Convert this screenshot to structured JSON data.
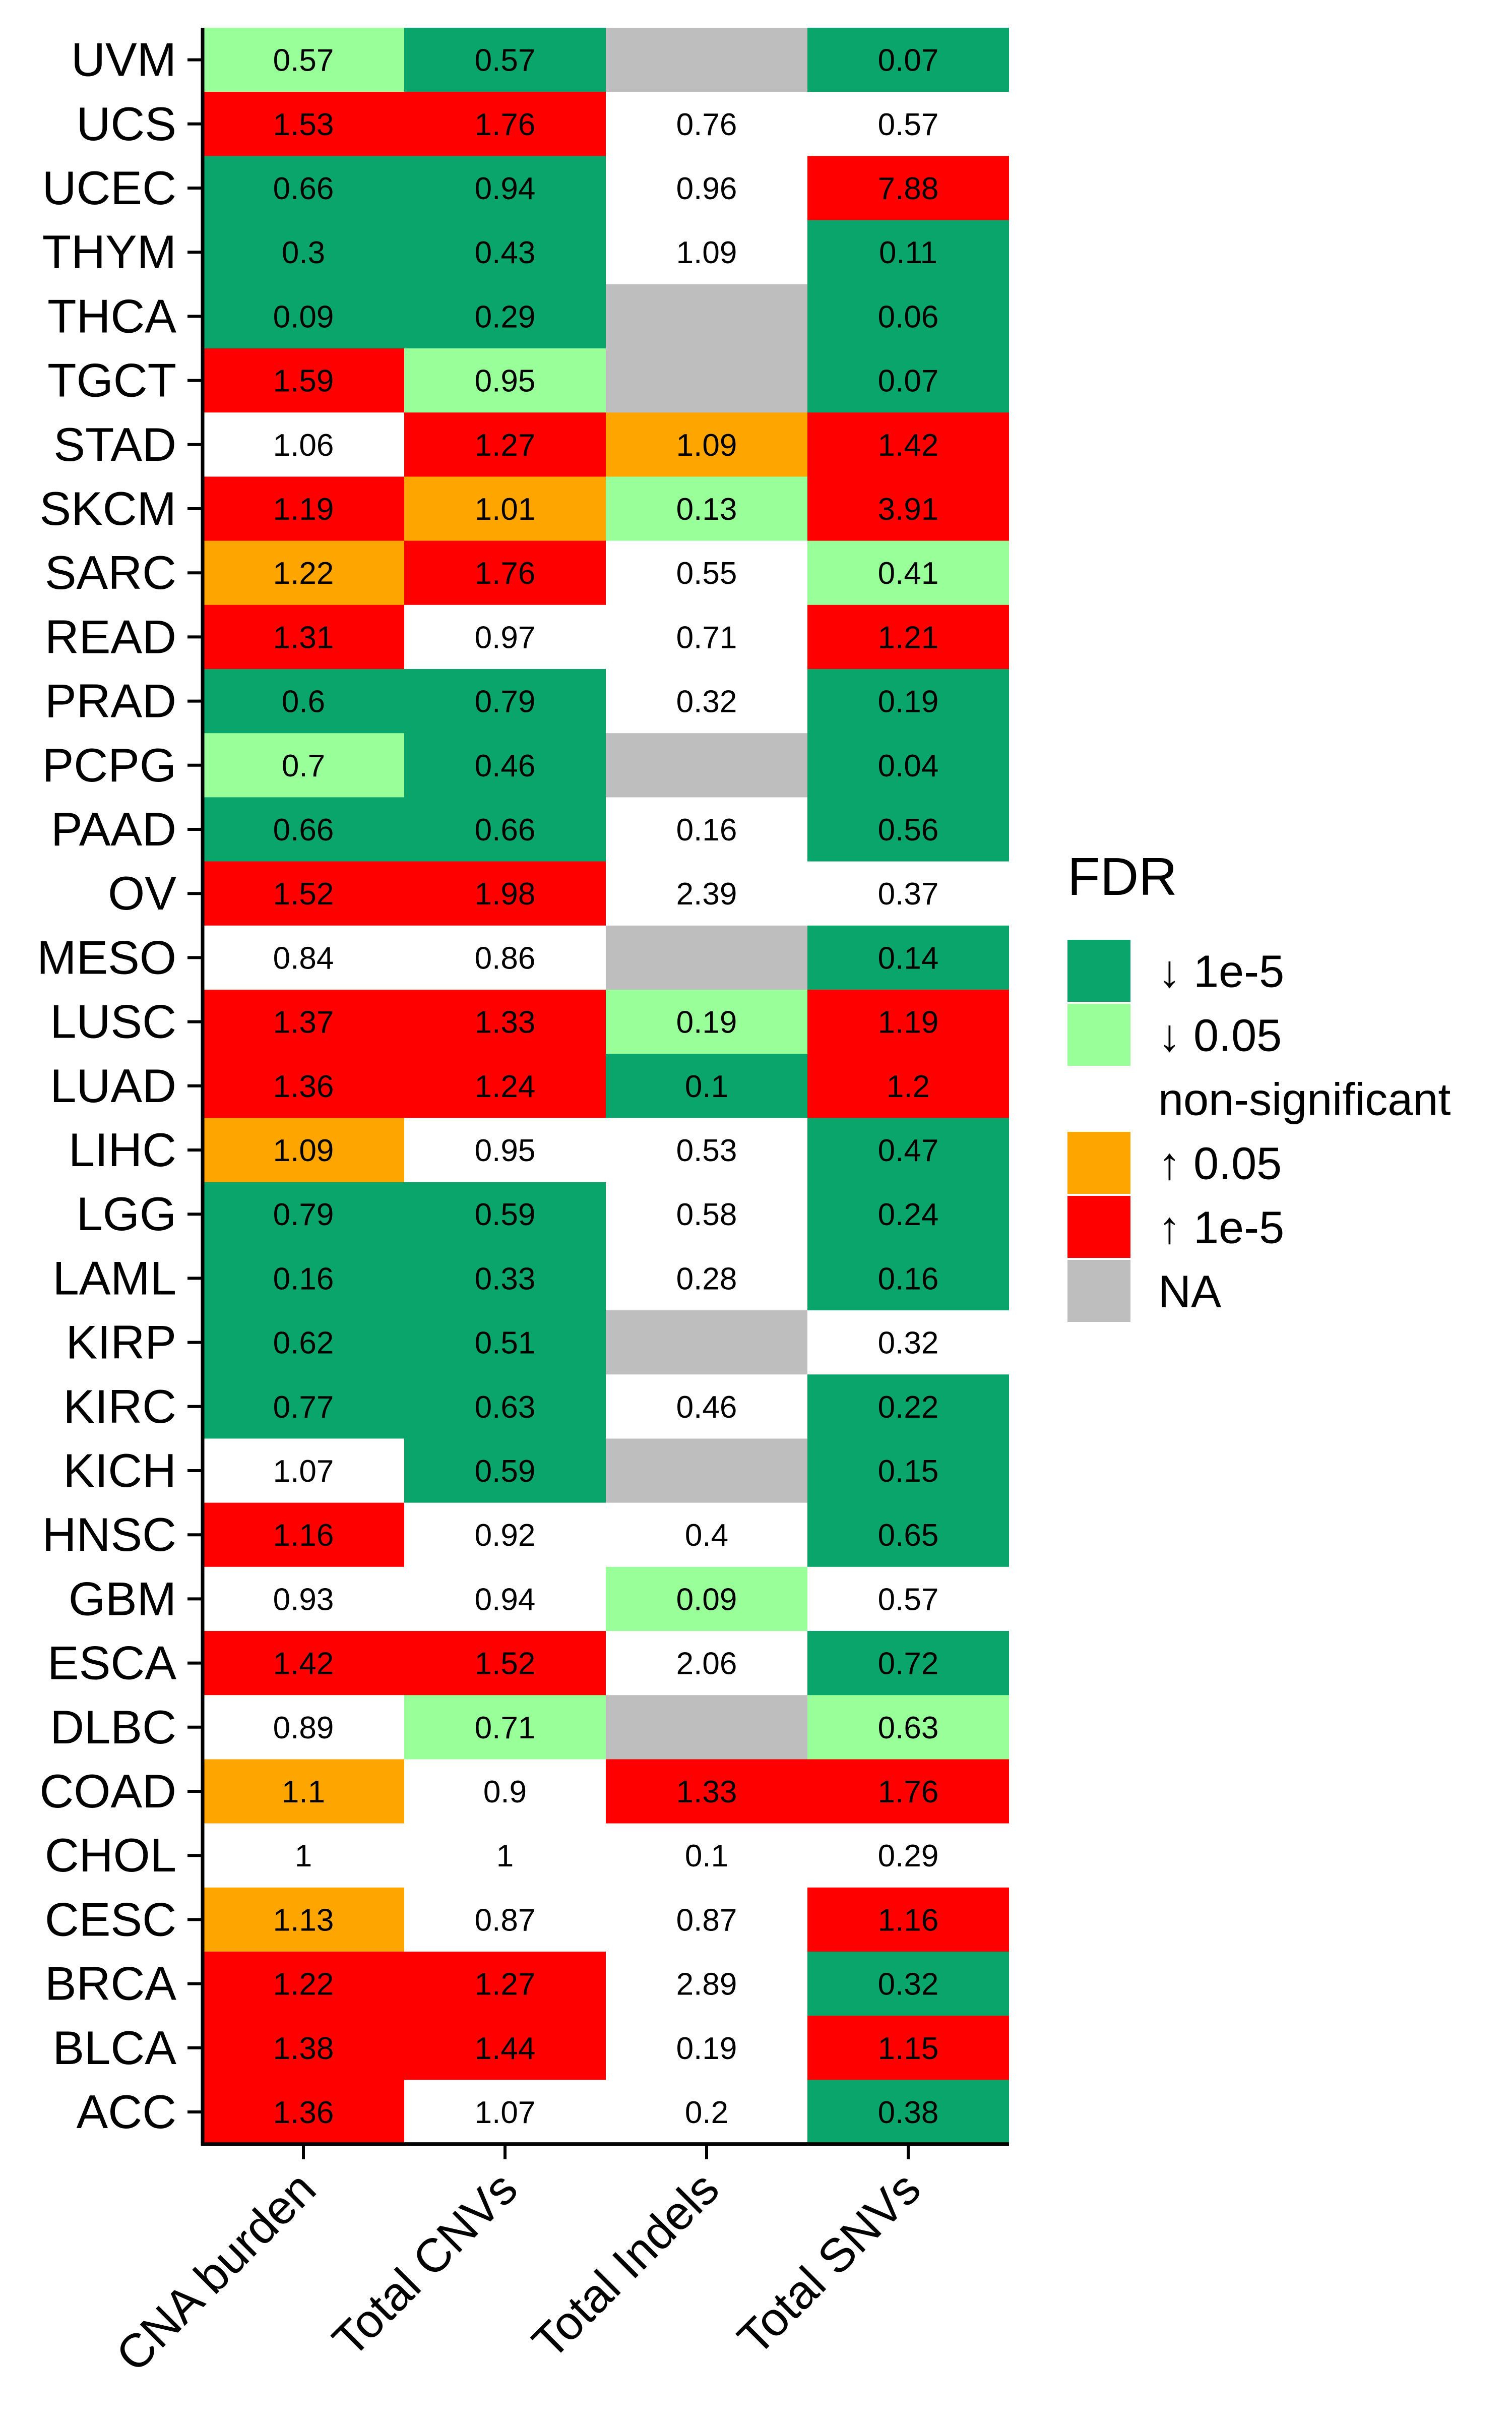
{
  "chart_data": {
    "type": "heatmap",
    "columns": [
      "CNA burden",
      "Total CNVs",
      "Total Indels",
      "Total SNVs"
    ],
    "rows": [
      {
        "name": "UVM",
        "values": [
          "0.57",
          "0.57",
          null,
          "0.07"
        ],
        "fdr": [
          "↓ 0.05",
          "↓ 1e-5",
          "NA",
          "↓ 1e-5"
        ]
      },
      {
        "name": "UCS",
        "values": [
          "1.53",
          "1.76",
          "0.76",
          "0.57"
        ],
        "fdr": [
          "↑ 1e-5",
          "↑ 1e-5",
          "non-significant",
          "non-significant"
        ]
      },
      {
        "name": "UCEC",
        "values": [
          "0.66",
          "0.94",
          "0.96",
          "7.88"
        ],
        "fdr": [
          "↓ 1e-5",
          "↓ 1e-5",
          "non-significant",
          "↑ 1e-5"
        ]
      },
      {
        "name": "THYM",
        "values": [
          "0.3",
          "0.43",
          "1.09",
          "0.11"
        ],
        "fdr": [
          "↓ 1e-5",
          "↓ 1e-5",
          "non-significant",
          "↓ 1e-5"
        ]
      },
      {
        "name": "THCA",
        "values": [
          "0.09",
          "0.29",
          null,
          "0.06"
        ],
        "fdr": [
          "↓ 1e-5",
          "↓ 1e-5",
          "NA",
          "↓ 1e-5"
        ]
      },
      {
        "name": "TGCT",
        "values": [
          "1.59",
          "0.95",
          null,
          "0.07"
        ],
        "fdr": [
          "↑ 1e-5",
          "↓ 0.05",
          "NA",
          "↓ 1e-5"
        ]
      },
      {
        "name": "STAD",
        "values": [
          "1.06",
          "1.27",
          "1.09",
          "1.42"
        ],
        "fdr": [
          "non-significant",
          "↑ 1e-5",
          "↑ 0.05",
          "↑ 1e-5"
        ]
      },
      {
        "name": "SKCM",
        "values": [
          "1.19",
          "1.01",
          "0.13",
          "3.91"
        ],
        "fdr": [
          "↑ 1e-5",
          "↑ 0.05",
          "↓ 0.05",
          "↑ 1e-5"
        ]
      },
      {
        "name": "SARC",
        "values": [
          "1.22",
          "1.76",
          "0.55",
          "0.41"
        ],
        "fdr": [
          "↑ 0.05",
          "↑ 1e-5",
          "non-significant",
          "↓ 0.05"
        ]
      },
      {
        "name": "READ",
        "values": [
          "1.31",
          "0.97",
          "0.71",
          "1.21"
        ],
        "fdr": [
          "↑ 1e-5",
          "non-significant",
          "non-significant",
          "↑ 1e-5"
        ]
      },
      {
        "name": "PRAD",
        "values": [
          "0.6",
          "0.79",
          "0.32",
          "0.19"
        ],
        "fdr": [
          "↓ 1e-5",
          "↓ 1e-5",
          "non-significant",
          "↓ 1e-5"
        ]
      },
      {
        "name": "PCPG",
        "values": [
          "0.7",
          "0.46",
          null,
          "0.04"
        ],
        "fdr": [
          "↓ 0.05",
          "↓ 1e-5",
          "NA",
          "↓ 1e-5"
        ]
      },
      {
        "name": "PAAD",
        "values": [
          "0.66",
          "0.66",
          "0.16",
          "0.56"
        ],
        "fdr": [
          "↓ 1e-5",
          "↓ 1e-5",
          "non-significant",
          "↓ 1e-5"
        ]
      },
      {
        "name": "OV",
        "values": [
          "1.52",
          "1.98",
          "2.39",
          "0.37"
        ],
        "fdr": [
          "↑ 1e-5",
          "↑ 1e-5",
          "non-significant",
          "non-significant"
        ]
      },
      {
        "name": "MESO",
        "values": [
          "0.84",
          "0.86",
          null,
          "0.14"
        ],
        "fdr": [
          "non-significant",
          "non-significant",
          "NA",
          "↓ 1e-5"
        ]
      },
      {
        "name": "LUSC",
        "values": [
          "1.37",
          "1.33",
          "0.19",
          "1.19"
        ],
        "fdr": [
          "↑ 1e-5",
          "↑ 1e-5",
          "↓ 0.05",
          "↑ 1e-5"
        ]
      },
      {
        "name": "LUAD",
        "values": [
          "1.36",
          "1.24",
          "0.1",
          "1.2"
        ],
        "fdr": [
          "↑ 1e-5",
          "↑ 1e-5",
          "↓ 1e-5",
          "↑ 1e-5"
        ]
      },
      {
        "name": "LIHC",
        "values": [
          "1.09",
          "0.95",
          "0.53",
          "0.47"
        ],
        "fdr": [
          "↑ 0.05",
          "non-significant",
          "non-significant",
          "↓ 1e-5"
        ]
      },
      {
        "name": "LGG",
        "values": [
          "0.79",
          "0.59",
          "0.58",
          "0.24"
        ],
        "fdr": [
          "↓ 1e-5",
          "↓ 1e-5",
          "non-significant",
          "↓ 1e-5"
        ]
      },
      {
        "name": "LAML",
        "values": [
          "0.16",
          "0.33",
          "0.28",
          "0.16"
        ],
        "fdr": [
          "↓ 1e-5",
          "↓ 1e-5",
          "non-significant",
          "↓ 1e-5"
        ]
      },
      {
        "name": "KIRP",
        "values": [
          "0.62",
          "0.51",
          null,
          "0.32"
        ],
        "fdr": [
          "↓ 1e-5",
          "↓ 1e-5",
          "NA",
          "non-significant"
        ]
      },
      {
        "name": "KIRC",
        "values": [
          "0.77",
          "0.63",
          "0.46",
          "0.22"
        ],
        "fdr": [
          "↓ 1e-5",
          "↓ 1e-5",
          "non-significant",
          "↓ 1e-5"
        ]
      },
      {
        "name": "KICH",
        "values": [
          "1.07",
          "0.59",
          null,
          "0.15"
        ],
        "fdr": [
          "non-significant",
          "↓ 1e-5",
          "NA",
          "↓ 1e-5"
        ]
      },
      {
        "name": "HNSC",
        "values": [
          "1.16",
          "0.92",
          "0.4",
          "0.65"
        ],
        "fdr": [
          "↑ 1e-5",
          "non-significant",
          "non-significant",
          "↓ 1e-5"
        ]
      },
      {
        "name": "GBM",
        "values": [
          "0.93",
          "0.94",
          "0.09",
          "0.57"
        ],
        "fdr": [
          "non-significant",
          "non-significant",
          "↓ 0.05",
          "non-significant"
        ]
      },
      {
        "name": "ESCA",
        "values": [
          "1.42",
          "1.52",
          "2.06",
          "0.72"
        ],
        "fdr": [
          "↑ 1e-5",
          "↑ 1e-5",
          "non-significant",
          "↓ 1e-5"
        ]
      },
      {
        "name": "DLBC",
        "values": [
          "0.89",
          "0.71",
          null,
          "0.63"
        ],
        "fdr": [
          "non-significant",
          "↓ 0.05",
          "NA",
          "↓ 0.05"
        ]
      },
      {
        "name": "COAD",
        "values": [
          "1.1",
          "0.9",
          "1.33",
          "1.76"
        ],
        "fdr": [
          "↑ 0.05",
          "non-significant",
          "↑ 1e-5",
          "↑ 1e-5"
        ]
      },
      {
        "name": "CHOL",
        "values": [
          "1",
          "1",
          "0.1",
          "0.29"
        ],
        "fdr": [
          "non-significant",
          "non-significant",
          "non-significant",
          "non-significant"
        ]
      },
      {
        "name": "CESC",
        "values": [
          "1.13",
          "0.87",
          "0.87",
          "1.16"
        ],
        "fdr": [
          "↑ 0.05",
          "non-significant",
          "non-significant",
          "↑ 1e-5"
        ]
      },
      {
        "name": "BRCA",
        "values": [
          "1.22",
          "1.27",
          "2.89",
          "0.32"
        ],
        "fdr": [
          "↑ 1e-5",
          "↑ 1e-5",
          "non-significant",
          "↓ 1e-5"
        ]
      },
      {
        "name": "BLCA",
        "values": [
          "1.38",
          "1.44",
          "0.19",
          "1.15"
        ],
        "fdr": [
          "↑ 1e-5",
          "↑ 1e-5",
          "non-significant",
          "↑ 1e-5"
        ]
      },
      {
        "name": "ACC",
        "values": [
          "1.36",
          "1.07",
          "0.2",
          "0.38"
        ],
        "fdr": [
          "↑ 1e-5",
          "non-significant",
          "non-significant",
          "↓ 1e-5"
        ]
      }
    ],
    "legend": {
      "title": "FDR",
      "position": "right",
      "items": [
        {
          "label": "↓ 1e-5",
          "color": "#0aa56b"
        },
        {
          "label": "↓ 0.05",
          "color": "#99ff99"
        },
        {
          "label": "non-significant",
          "color": "#ffffff"
        },
        {
          "label": "↑ 0.05",
          "color": "#ffa500"
        },
        {
          "label": "↑ 1e-5",
          "color": "#ff0000"
        },
        {
          "label": "NA",
          "color": "#bebebe"
        }
      ]
    },
    "xlabel": "",
    "ylabel": "",
    "grid": false
  }
}
